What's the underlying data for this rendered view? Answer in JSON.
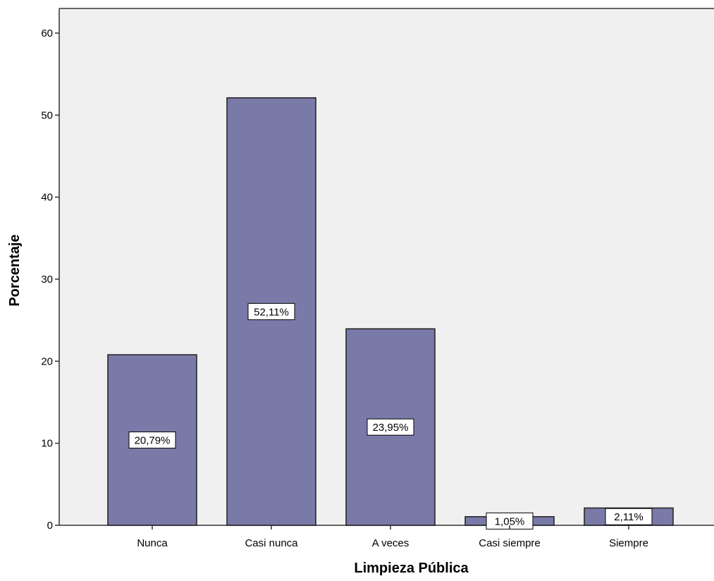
{
  "chart_data": {
    "type": "bar",
    "title": "",
    "xlabel": "Limpieza Pública",
    "ylabel": "Porcentaje",
    "categories": [
      "Nunca",
      "Casi nunca",
      "A veces",
      "Casi siempre",
      "Siempre"
    ],
    "values": [
      20.79,
      52.11,
      23.95,
      1.05,
      2.11
    ],
    "data_labels": [
      "20,79%",
      "52,11%",
      "23,95%",
      "1,05%",
      "2,11%"
    ],
    "ylim": [
      0,
      63
    ],
    "yticks": [
      0,
      10,
      20,
      30,
      40,
      50,
      60
    ],
    "grid": false,
    "legend": "none",
    "colors": {
      "plot_background": "#f0f0f0",
      "bar_fill": "#7a7aa8",
      "bar_stroke": "#1f1f1f",
      "label_box_fill": "#ffffff",
      "label_box_stroke": "#000000",
      "axis": "#333333"
    }
  }
}
